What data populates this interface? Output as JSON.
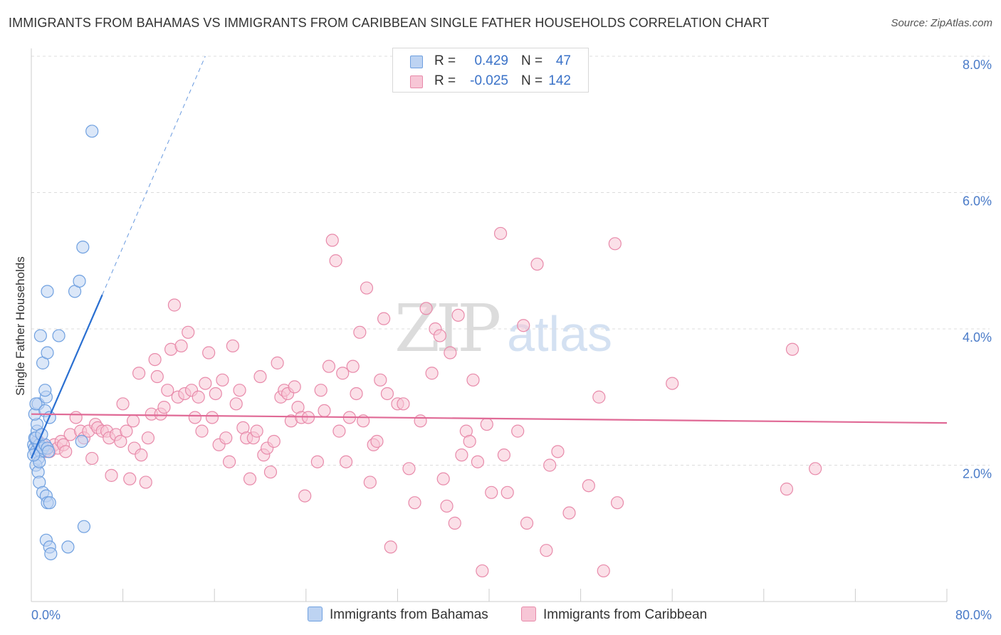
{
  "title": "IMMIGRANTS FROM BAHAMAS VS IMMIGRANTS FROM CARIBBEAN SINGLE FATHER HOUSEHOLDS CORRELATION CHART",
  "source": "Source: ZipAtlas.com",
  "watermark": {
    "zip": "ZIP",
    "atlas": "atlas"
  },
  "legend": {
    "rows": [
      {
        "r_label": "R =",
        "r_value": "0.429",
        "n_label": "N =",
        "n_value": "47",
        "color": "#6fa0e0",
        "fill": "#bdd3f2"
      },
      {
        "r_label": "R =",
        "r_value": "-0.025",
        "n_label": "N =",
        "n_value": "142",
        "color": "#e88aaa",
        "fill": "#f7c6d6"
      }
    ]
  },
  "bottom_legend": [
    "Immigrants from Bahamas",
    "Immigrants from Caribbean"
  ],
  "chart_data": {
    "type": "scatter",
    "title": "IMMIGRANTS FROM BAHAMAS VS IMMIGRANTS FROM CARIBBEAN SINGLE FATHER HOUSEHOLDS CORRELATION CHART",
    "xlabel": "",
    "ylabel": "Single Father Households",
    "xlim": [
      0,
      80
    ],
    "ylim": [
      0,
      8
    ],
    "x_tick_labels": [
      "0.0%",
      "80.0%"
    ],
    "y_ticks": [
      2,
      4,
      6,
      8
    ],
    "y_tick_labels": [
      "2.0%",
      "4.0%",
      "6.0%",
      "8.0%"
    ],
    "grid": "horizontal dashed",
    "series": [
      {
        "name": "Immigrants from Bahamas",
        "color": "#6fa0e0",
        "fill": "#bdd3f2",
        "trend_color": "#2a6fd1",
        "trend": {
          "x0": 0,
          "y0": 2.1,
          "x1": 6.2,
          "y1": 4.5,
          "dashed_to_x": 15.2,
          "dashed_to_y": 8.0
        },
        "points": [
          [
            0.2,
            2.3
          ],
          [
            0.3,
            2.25
          ],
          [
            0.4,
            2.2
          ],
          [
            0.5,
            2.35
          ],
          [
            0.6,
            2.1
          ],
          [
            0.3,
            2.4
          ],
          [
            0.5,
            2.5
          ],
          [
            0.7,
            2.3
          ],
          [
            0.8,
            2.2
          ],
          [
            1.0,
            2.25
          ],
          [
            1.2,
            2.3
          ],
          [
            1.4,
            2.25
          ],
          [
            0.4,
            2.0
          ],
          [
            0.6,
            1.9
          ],
          [
            0.7,
            2.05
          ],
          [
            0.5,
            2.6
          ],
          [
            0.3,
            2.75
          ],
          [
            0.6,
            2.9
          ],
          [
            0.4,
            2.9
          ],
          [
            1.2,
            2.8
          ],
          [
            1.3,
            3.0
          ],
          [
            1.2,
            3.1
          ],
          [
            1.6,
            2.7
          ],
          [
            1.0,
            3.5
          ],
          [
            1.4,
            3.65
          ],
          [
            0.8,
            3.9
          ],
          [
            2.4,
            3.9
          ],
          [
            1.4,
            4.55
          ],
          [
            0.4,
            2.4
          ],
          [
            0.9,
            2.45
          ],
          [
            1.5,
            2.2
          ],
          [
            0.7,
            1.75
          ],
          [
            1.0,
            1.6
          ],
          [
            1.3,
            1.55
          ],
          [
            1.4,
            1.45
          ],
          [
            1.6,
            1.45
          ],
          [
            1.3,
            0.9
          ],
          [
            1.6,
            0.8
          ],
          [
            1.7,
            0.7
          ],
          [
            3.2,
            0.8
          ],
          [
            4.6,
            1.1
          ],
          [
            4.4,
            2.35
          ],
          [
            3.8,
            4.55
          ],
          [
            4.2,
            4.7
          ],
          [
            4.5,
            5.2
          ],
          [
            5.3,
            6.9
          ],
          [
            0.2,
            2.15
          ]
        ]
      },
      {
        "name": "Immigrants from Caribbean",
        "color": "#e88aaa",
        "fill": "#f7c6d6",
        "trend_color": "#e06a96",
        "trend": {
          "x0": 0,
          "y0": 2.75,
          "x1": 80,
          "y1": 2.62
        },
        "points": [
          [
            0.6,
            2.35
          ],
          [
            1.0,
            2.3
          ],
          [
            1.2,
            2.2
          ],
          [
            1.4,
            2.25
          ],
          [
            1.6,
            2.2
          ],
          [
            2.0,
            2.3
          ],
          [
            2.3,
            2.25
          ],
          [
            2.6,
            2.35
          ],
          [
            2.8,
            2.3
          ],
          [
            3.0,
            2.2
          ],
          [
            3.4,
            2.45
          ],
          [
            3.9,
            2.7
          ],
          [
            4.3,
            2.5
          ],
          [
            4.6,
            2.4
          ],
          [
            5.0,
            2.5
          ],
          [
            5.3,
            2.1
          ],
          [
            5.6,
            2.6
          ],
          [
            5.8,
            2.55
          ],
          [
            6.2,
            2.5
          ],
          [
            6.6,
            2.5
          ],
          [
            6.8,
            2.4
          ],
          [
            7.0,
            1.85
          ],
          [
            7.4,
            2.45
          ],
          [
            7.8,
            2.35
          ],
          [
            8.0,
            2.9
          ],
          [
            8.3,
            2.5
          ],
          [
            8.6,
            1.8
          ],
          [
            8.9,
            2.65
          ],
          [
            9.0,
            2.25
          ],
          [
            9.4,
            3.35
          ],
          [
            9.6,
            2.15
          ],
          [
            10.0,
            1.75
          ],
          [
            10.2,
            2.4
          ],
          [
            10.5,
            2.75
          ],
          [
            10.8,
            3.55
          ],
          [
            11.0,
            3.3
          ],
          [
            11.3,
            2.75
          ],
          [
            11.6,
            2.85
          ],
          [
            11.9,
            3.1
          ],
          [
            12.2,
            3.7
          ],
          [
            12.5,
            4.35
          ],
          [
            12.8,
            3.0
          ],
          [
            13.1,
            3.75
          ],
          [
            13.4,
            3.05
          ],
          [
            13.7,
            3.95
          ],
          [
            14.0,
            3.1
          ],
          [
            14.3,
            2.7
          ],
          [
            14.6,
            3.0
          ],
          [
            14.9,
            2.5
          ],
          [
            15.2,
            3.2
          ],
          [
            15.5,
            3.65
          ],
          [
            15.8,
            2.7
          ],
          [
            16.1,
            3.05
          ],
          [
            16.4,
            2.3
          ],
          [
            16.7,
            3.25
          ],
          [
            17.0,
            2.4
          ],
          [
            17.3,
            2.05
          ],
          [
            17.6,
            3.75
          ],
          [
            17.9,
            2.9
          ],
          [
            18.2,
            3.1
          ],
          [
            18.5,
            2.55
          ],
          [
            18.8,
            2.4
          ],
          [
            19.1,
            1.8
          ],
          [
            19.4,
            2.4
          ],
          [
            19.7,
            2.5
          ],
          [
            20.0,
            3.3
          ],
          [
            20.3,
            2.15
          ],
          [
            20.6,
            2.25
          ],
          [
            20.9,
            1.9
          ],
          [
            21.2,
            2.35
          ],
          [
            21.5,
            3.5
          ],
          [
            21.8,
            3.0
          ],
          [
            22.1,
            3.1
          ],
          [
            22.4,
            3.05
          ],
          [
            22.7,
            2.65
          ],
          [
            23.0,
            3.15
          ],
          [
            23.3,
            2.85
          ],
          [
            23.6,
            2.7
          ],
          [
            23.9,
            1.55
          ],
          [
            24.2,
            2.7
          ],
          [
            25.0,
            2.05
          ],
          [
            25.3,
            3.1
          ],
          [
            25.6,
            2.8
          ],
          [
            26.0,
            3.45
          ],
          [
            26.3,
            5.3
          ],
          [
            26.6,
            5.0
          ],
          [
            26.9,
            2.5
          ],
          [
            27.2,
            3.35
          ],
          [
            27.5,
            2.05
          ],
          [
            27.8,
            2.7
          ],
          [
            28.1,
            3.45
          ],
          [
            28.4,
            3.05
          ],
          [
            28.7,
            3.95
          ],
          [
            29.0,
            2.65
          ],
          [
            29.3,
            4.6
          ],
          [
            29.6,
            1.75
          ],
          [
            29.9,
            2.3
          ],
          [
            30.2,
            2.35
          ],
          [
            30.5,
            3.25
          ],
          [
            30.8,
            4.15
          ],
          [
            31.1,
            3.05
          ],
          [
            31.4,
            0.8
          ],
          [
            32.0,
            2.9
          ],
          [
            32.5,
            2.9
          ],
          [
            33.0,
            1.95
          ],
          [
            33.5,
            1.45
          ],
          [
            34.0,
            2.65
          ],
          [
            34.5,
            4.3
          ],
          [
            35.0,
            3.35
          ],
          [
            35.3,
            4.0
          ],
          [
            35.7,
            3.9
          ],
          [
            36.0,
            1.8
          ],
          [
            36.3,
            1.4
          ],
          [
            36.6,
            3.65
          ],
          [
            37.0,
            1.15
          ],
          [
            37.3,
            4.2
          ],
          [
            37.6,
            2.15
          ],
          [
            38.0,
            2.5
          ],
          [
            38.3,
            2.35
          ],
          [
            38.6,
            3.25
          ],
          [
            39.0,
            2.05
          ],
          [
            39.4,
            0.45
          ],
          [
            39.8,
            2.6
          ],
          [
            40.2,
            1.6
          ],
          [
            41.0,
            5.4
          ],
          [
            41.3,
            2.15
          ],
          [
            41.6,
            1.6
          ],
          [
            42.5,
            2.5
          ],
          [
            43.0,
            4.05
          ],
          [
            43.3,
            1.15
          ],
          [
            44.2,
            4.95
          ],
          [
            45.0,
            0.75
          ],
          [
            45.3,
            2.0
          ],
          [
            46.0,
            2.2
          ],
          [
            47.0,
            1.3
          ],
          [
            48.7,
            1.7
          ],
          [
            49.6,
            3.0
          ],
          [
            50.0,
            0.45
          ],
          [
            51.0,
            5.25
          ],
          [
            51.2,
            1.45
          ],
          [
            56.0,
            3.2
          ],
          [
            66.0,
            1.65
          ],
          [
            66.5,
            3.7
          ],
          [
            68.5,
            1.95
          ]
        ]
      }
    ]
  }
}
